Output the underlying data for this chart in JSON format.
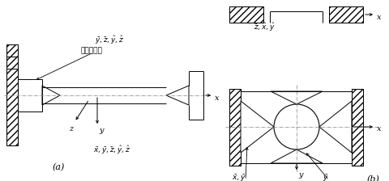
{
  "bg_color": "#ffffff",
  "fig_width": 4.81,
  "fig_height": 2.24,
  "dpi": 100,
  "label_a": "(a)",
  "label_b": "(b)",
  "text_a_top": "$\\bar{y}, \\bar{z}, \\hat{y}, \\hat{z}$",
  "text_a_bottom": "$\\bar{x}, \\bar{y}, \\bar{z}, \\hat{y}, \\hat{z}$",
  "text_relative": "相对夹持长",
  "text_b_top_label": "$\\bar{z}, \\hat{x}, \\hat{y}$",
  "text_b_bot_left": "$\\bar{x}, \\bar{y}$",
  "text_b_bot_right": "$\\bar{y}$"
}
